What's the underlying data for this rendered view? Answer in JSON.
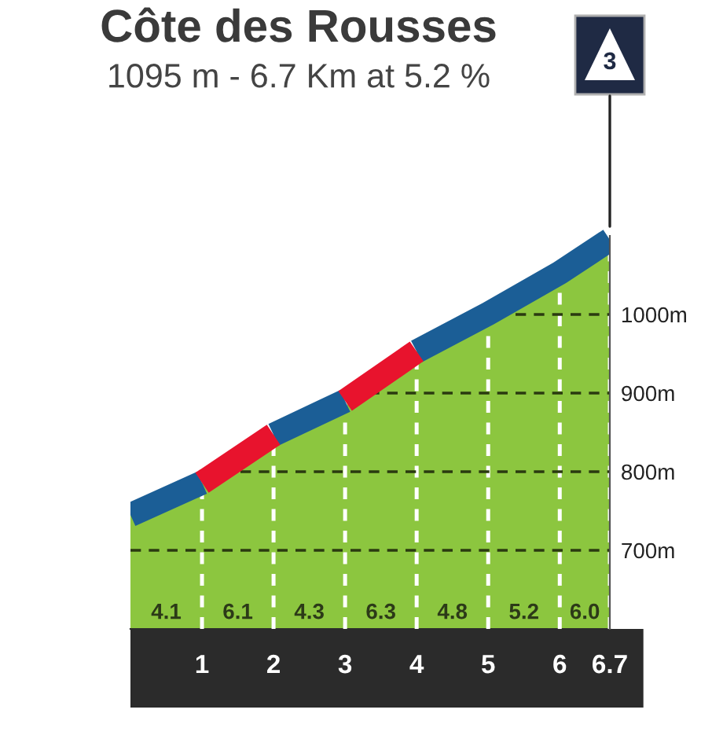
{
  "chart_data": {
    "type": "area",
    "title": "Côte des Rousses",
    "subtitle": "1095 m - 6.7 Km at 5.2 %",
    "x": [
      0,
      1,
      2,
      3,
      4,
      5,
      6,
      6.7
    ],
    "series": [
      {
        "color": "#8cc63f",
        "values": [
          745,
          786,
          847,
          890,
          953,
          1001,
          1053,
          1095
        ]
      },
      {
        "type": "line",
        "color": "#1b5e96",
        "x": [
          0,
          1,
          1.5,
          2,
          3,
          3.5,
          4,
          5,
          6,
          6.7
        ],
        "values": [
          745,
          786,
          null,
          847,
          890,
          null,
          953,
          1001,
          1053,
          1095
        ]
      },
      {
        "type": "line",
        "color": "#e8132d",
        "x": [
          1,
          2,
          2.5,
          3,
          4
        ],
        "values": [
          786,
          847,
          null,
          890,
          953
        ]
      }
    ],
    "xlim": [
      0,
      6.7
    ],
    "xticks": [
      1,
      2,
      3,
      4,
      5,
      6,
      6.7
    ],
    "ylim": [
      600,
      1100
    ],
    "yticks": [
      {
        "value": 700,
        "label": "700m"
      },
      {
        "value": 800,
        "label": "800m"
      },
      {
        "value": 900,
        "label": "900m"
      },
      {
        "value": 1000,
        "label": "1000m"
      }
    ],
    "grid": true,
    "annotations": [
      "3",
      "4.1",
      "6.1",
      "4.3",
      "6.3",
      "4.8",
      "5.2",
      "6.0"
    ]
  }
}
